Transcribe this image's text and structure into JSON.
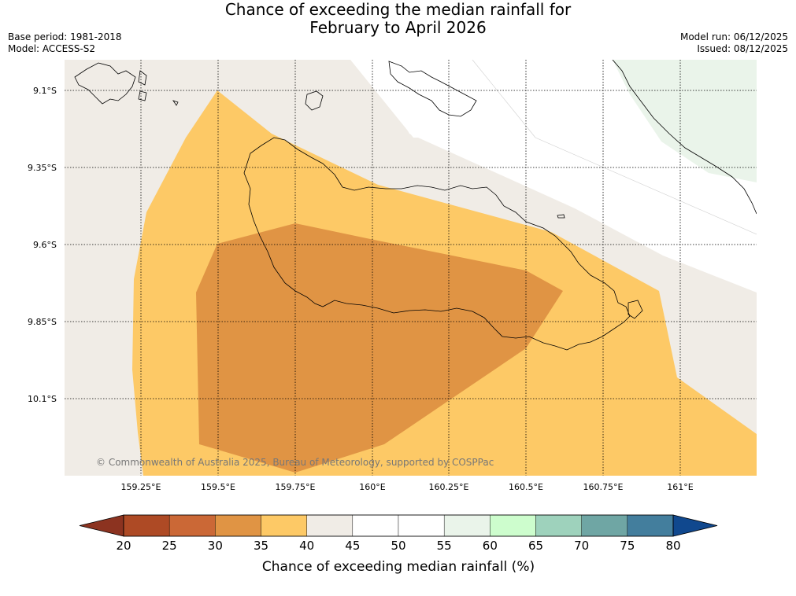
{
  "title": {
    "line1": "Chance of exceeding the median rainfall for",
    "line2": "February to April 2026"
  },
  "meta": {
    "base_period": "Base period: 1981-2018",
    "model": "Model: ACCESS-S2",
    "model_run": "Model run: 06/12/2025",
    "issued": "Issued: 08/12/2025"
  },
  "map": {
    "lat_labels": [
      "9.1°S",
      "9.35°S",
      "9.6°S",
      "9.85°S",
      "10.1°S"
    ],
    "lon_labels": [
      "159.25°E",
      "159.5°E",
      "159.75°E",
      "160°E",
      "160.25°E",
      "160.5°E",
      "160.75°E",
      "161°E"
    ],
    "copyright": "© Commonwealth of Australia 2025, Bureau of Meteorology, supported by COSPPac",
    "zones": [
      {
        "name": "40-45",
        "color": "#f0ece6"
      },
      {
        "name": "35-40",
        "color": "#fdc966"
      },
      {
        "name": "30-35",
        "color": "#e09444"
      },
      {
        "name": "55-60",
        "color": "#eaf4ea"
      }
    ]
  },
  "legend": {
    "ticks": [
      "20",
      "25",
      "30",
      "35",
      "40",
      "45",
      "50",
      "55",
      "60",
      "65",
      "70",
      "75",
      "80"
    ],
    "colors": [
      "#ae4a25",
      "#cb6836",
      "#e09444",
      "#fdc966",
      "#f0ece6",
      "#ffffff",
      "#ffffff",
      "#eaf4ea",
      "#cdfdcd",
      "#9ed2bc",
      "#6fa6a4",
      "#437e9d"
    ],
    "low_color": "#8c3320",
    "high_color": "#10488e",
    "label": "Chance of exceeding median rainfall (%)"
  }
}
